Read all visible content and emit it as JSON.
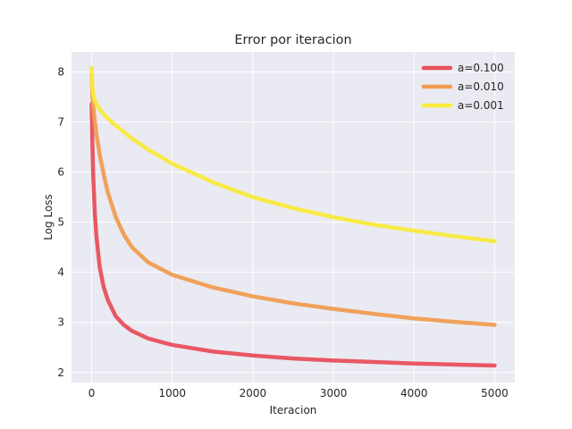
{
  "chart_data": {
    "type": "line",
    "title": "Error por iteracion",
    "xlabel": "Iteracion",
    "ylabel": "Log Loss",
    "xlim": [
      -250,
      5250
    ],
    "ylim": [
      1.8,
      8.4
    ],
    "xticks": [
      0,
      1000,
      2000,
      3000,
      4000,
      5000
    ],
    "yticks": [
      2,
      3,
      4,
      5,
      6,
      7,
      8
    ],
    "grid": true,
    "legend_position": "top-right",
    "background": "#eaeaf2",
    "series": [
      {
        "name": "a=0.100",
        "color": "#e8505b",
        "x": [
          0,
          10,
          20,
          40,
          60,
          100,
          150,
          200,
          300,
          400,
          500,
          700,
          1000,
          1500,
          2000,
          2500,
          3000,
          3500,
          4000,
          4500,
          5000
        ],
        "y": [
          7.36,
          6.5,
          5.9,
          5.15,
          4.7,
          4.1,
          3.7,
          3.45,
          3.12,
          2.95,
          2.83,
          2.68,
          2.55,
          2.42,
          2.34,
          2.28,
          2.24,
          2.21,
          2.18,
          2.16,
          2.14
        ]
      },
      {
        "name": "a=0.010",
        "color": "#f09d51",
        "x": [
          0,
          10,
          20,
          40,
          60,
          100,
          150,
          200,
          300,
          400,
          500,
          700,
          1000,
          1500,
          2000,
          2500,
          3000,
          3500,
          4000,
          4500,
          5000
        ],
        "y": [
          7.95,
          7.5,
          7.3,
          7.0,
          6.75,
          6.35,
          5.95,
          5.6,
          5.1,
          4.75,
          4.5,
          4.2,
          3.95,
          3.7,
          3.52,
          3.38,
          3.27,
          3.17,
          3.08,
          3.01,
          2.95
        ]
      },
      {
        "name": "a=0.001",
        "color": "#f9ea3c",
        "x": [
          0,
          10,
          20,
          40,
          60,
          100,
          150,
          200,
          300,
          400,
          500,
          700,
          1000,
          1500,
          2000,
          2500,
          3000,
          3500,
          4000,
          4500,
          5000
        ],
        "y": [
          8.08,
          7.7,
          7.55,
          7.42,
          7.35,
          7.25,
          7.15,
          7.07,
          6.93,
          6.8,
          6.67,
          6.45,
          6.17,
          5.8,
          5.5,
          5.28,
          5.1,
          4.95,
          4.83,
          4.72,
          4.62
        ]
      }
    ]
  }
}
